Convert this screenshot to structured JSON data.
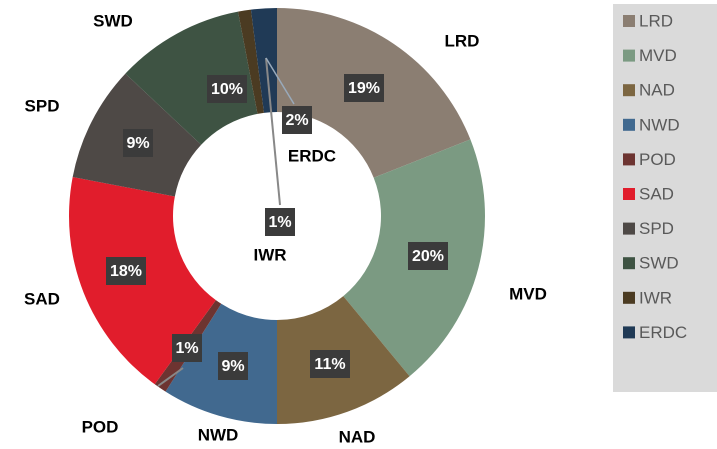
{
  "chart_data": {
    "type": "donut",
    "categories": [
      "LRD",
      "MVD",
      "NAD",
      "NWD",
      "POD",
      "SAD",
      "SPD",
      "SWD",
      "IWR",
      "ERDC"
    ],
    "values": [
      19,
      20,
      11,
      9,
      1,
      18,
      9,
      10,
      1,
      2
    ],
    "value_labels": [
      "19%",
      "20%",
      "11%",
      "9%",
      "1%",
      "18%",
      "9%",
      "10%",
      "1%",
      "2%"
    ],
    "colors": [
      "#8b7e72",
      "#7b9a82",
      "#7c6641",
      "#41698f",
      "#6d3431",
      "#e11d2c",
      "#4e4946",
      "#3e5343",
      "#4b3b22",
      "#203a56"
    ],
    "legend": "right"
  }
}
